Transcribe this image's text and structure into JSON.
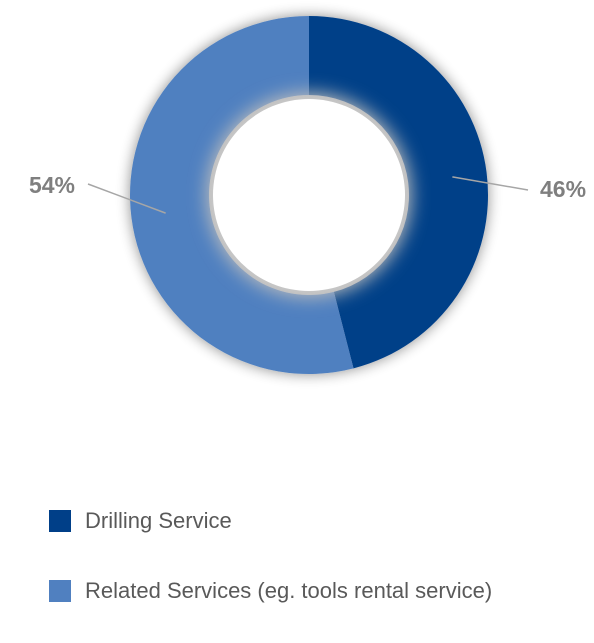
{
  "chart_data": {
    "type": "pie",
    "donut": true,
    "start_angle_deg": 0,
    "direction": "clockwise",
    "legend_position": "bottom",
    "slices": [
      {
        "label": "Drilling Service",
        "value": 46,
        "display": "46%",
        "color": "#003F88"
      },
      {
        "label": "Related Services (eg. tools rental service)",
        "value": 54,
        "display": "54%",
        "color": "#5080C0"
      }
    ],
    "label_color": "#7F7F7F",
    "leader_line_color": "#A6A6A6"
  }
}
